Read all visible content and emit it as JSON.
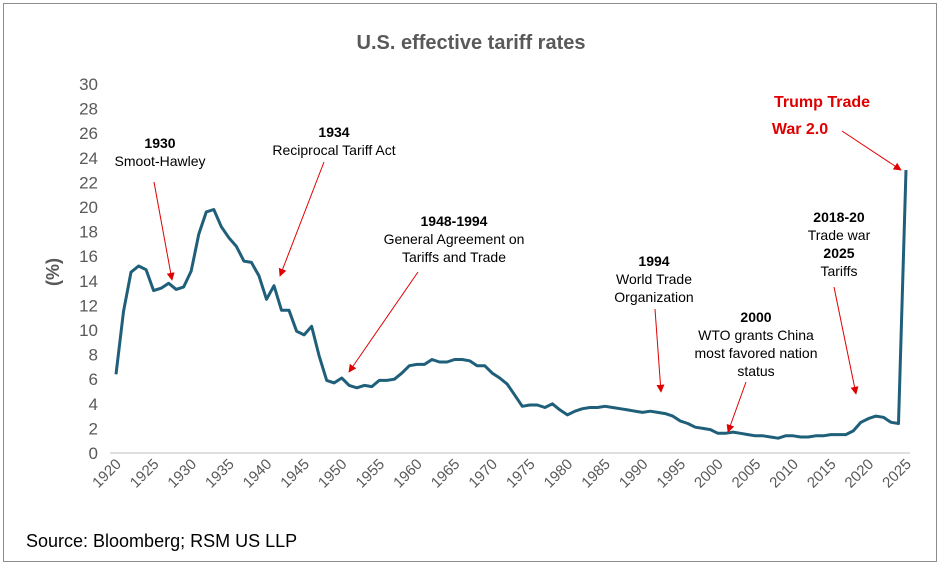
{
  "chart_data": {
    "type": "line",
    "title": "U.S. effective tariff rates",
    "ylabel": "(%)",
    "xlabel": "",
    "ylim": [
      0,
      30
    ],
    "xlim": [
      1920,
      2025
    ],
    "yticks": [
      0,
      2,
      4,
      6,
      8,
      10,
      12,
      14,
      16,
      18,
      20,
      22,
      24,
      26,
      28,
      30
    ],
    "xticks": [
      1920,
      1925,
      1930,
      1935,
      1940,
      1945,
      1950,
      1955,
      1960,
      1965,
      1970,
      1975,
      1980,
      1985,
      1990,
      1995,
      2000,
      2005,
      2010,
      2015,
      2020,
      2025
    ],
    "grid": false,
    "line_color": "#1f5f7a",
    "series": [
      {
        "x": [
          1920,
          1921,
          1922,
          1923,
          1924,
          1925,
          1926,
          1927,
          1928,
          1929,
          1930,
          1931,
          1932,
          1933,
          1934,
          1935,
          1936,
          1937,
          1938,
          1939,
          1940,
          1941,
          1942,
          1943,
          1944,
          1945,
          1946,
          1947,
          1948,
          1949,
          1950,
          1951,
          1952,
          1953,
          1954,
          1955,
          1956,
          1957,
          1958,
          1959,
          1960,
          1961,
          1962,
          1963,
          1964,
          1965,
          1966,
          1967,
          1968,
          1969,
          1970,
          1971,
          1972,
          1973,
          1974,
          1975,
          1976,
          1977,
          1978,
          1979,
          1980,
          1981,
          1982,
          1983,
          1984,
          1985,
          1986,
          1987,
          1988,
          1989,
          1990,
          1991,
          1992,
          1993,
          1994,
          1995,
          1996,
          1997,
          1998,
          1999,
          2000,
          2001,
          2002,
          2003,
          2004,
          2005,
          2006,
          2007,
          2008,
          2009,
          2010,
          2011,
          2012,
          2013,
          2014,
          2015,
          2016,
          2017,
          2018,
          2019,
          2020,
          2021,
          2022,
          2023,
          2024,
          2025
        ],
        "values": [
          6.4,
          11.5,
          14.7,
          15.2,
          14.9,
          13.2,
          13.4,
          13.8,
          13.3,
          13.5,
          14.8,
          17.8,
          19.6,
          19.8,
          18.4,
          17.5,
          16.8,
          15.6,
          15.5,
          14.4,
          12.5,
          13.6,
          11.6,
          11.6,
          9.9,
          9.6,
          10.3,
          7.9,
          5.9,
          5.7,
          6.1,
          5.5,
          5.3,
          5.5,
          5.4,
          5.9,
          5.9,
          6.0,
          6.5,
          7.1,
          7.2,
          7.2,
          7.6,
          7.4,
          7.4,
          7.6,
          7.6,
          7.5,
          7.1,
          7.1,
          6.5,
          6.1,
          5.6,
          4.7,
          3.8,
          3.9,
          3.9,
          3.7,
          4.0,
          3.5,
          3.1,
          3.4,
          3.6,
          3.7,
          3.7,
          3.8,
          3.7,
          3.6,
          3.5,
          3.4,
          3.3,
          3.4,
          3.3,
          3.2,
          3.0,
          2.6,
          2.4,
          2.1,
          2.0,
          1.9,
          1.6,
          1.6,
          1.7,
          1.6,
          1.5,
          1.4,
          1.4,
          1.3,
          1.2,
          1.4,
          1.4,
          1.3,
          1.3,
          1.4,
          1.4,
          1.5,
          1.5,
          1.5,
          1.8,
          2.5,
          2.8,
          3.0,
          2.9,
          2.5,
          2.4,
          23.0
        ]
      }
    ],
    "annotations": [
      {
        "bold": "1930",
        "text": [
          "Smoot-Hawley"
        ],
        "target": [
          1928,
          13.6
        ],
        "color": "#000000"
      },
      {
        "bold": "1934",
        "text": [
          "Reciprocal Tariff Act"
        ],
        "target": [
          1942,
          14.0
        ],
        "color": "#000000"
      },
      {
        "bold": "1948-1994",
        "text": [
          "General Agreement on",
          "Tariffs and Trade"
        ],
        "target": [
          1951,
          6.6
        ],
        "color": "#000000"
      },
      {
        "bold": "1994",
        "text": [
          "World Trade",
          "Organization"
        ],
        "target": [
          1993,
          5.0
        ],
        "color": "#000000"
      },
      {
        "bold": "2000",
        "text": [
          "WTO grants China",
          "most favored nation",
          "status"
        ],
        "target": [
          2002,
          1.8
        ],
        "color": "#000000"
      },
      {
        "bold": "2018-20",
        "text": [
          "Trade war"
        ],
        "bold2": "2025",
        "text2": [
          "Tariffs"
        ],
        "target": [
          2019,
          4.6
        ],
        "color": "#000000"
      },
      {
        "bold": "Trump Trade",
        "bold_line2": "War 2.0",
        "target": [
          2025,
          23.0
        ],
        "color": "#e00000"
      }
    ],
    "arrow_color": "#e00000"
  },
  "footer": {
    "source": "Source: Bloomberg; RSM US LLP"
  }
}
